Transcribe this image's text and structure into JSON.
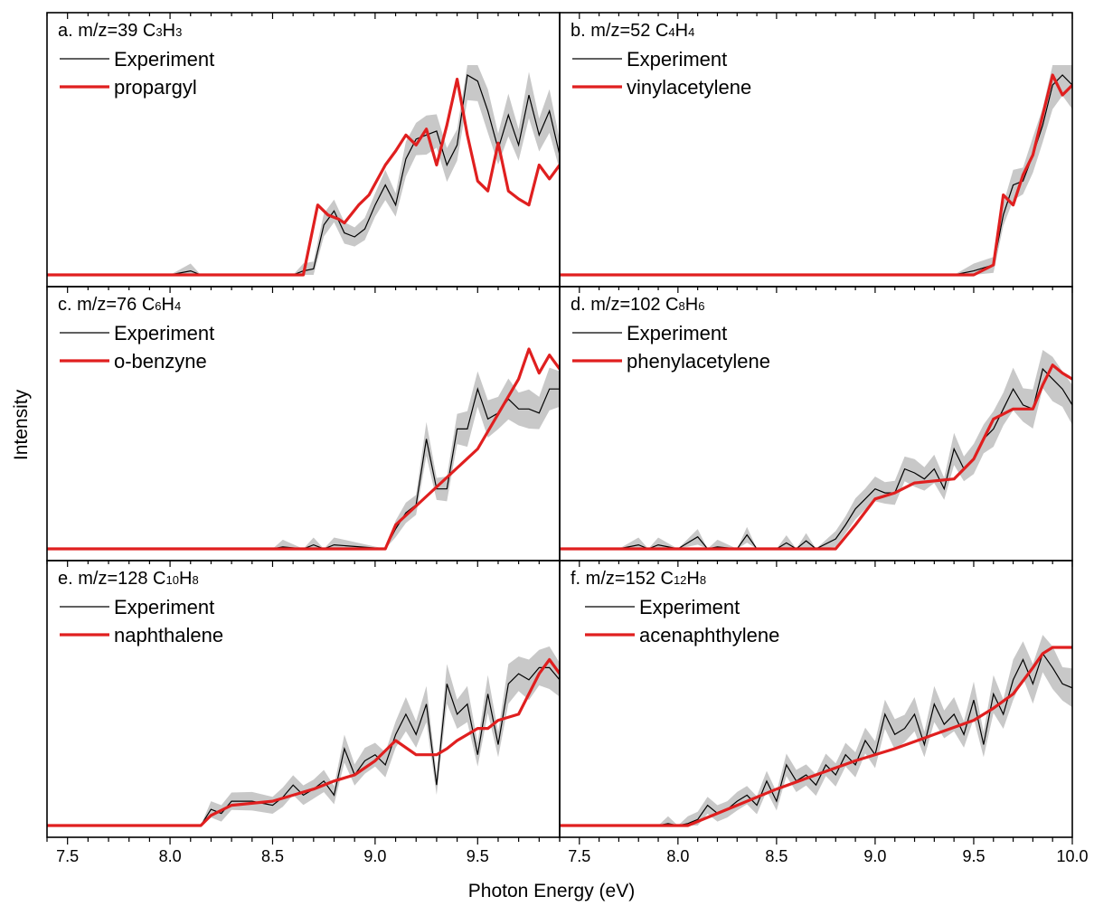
{
  "figure": {
    "xlabel": "Photon Energy (eV)",
    "ylabel": "Intensity",
    "colors": {
      "experiment": "#000000",
      "model": "#e01f1f",
      "band": "#c8c8c8"
    }
  },
  "chart_data": [
    {
      "type": "line",
      "title": "a. m/z=39 C3H3",
      "title_parts": {
        "prefix": "a. m/z=39 C",
        "n1": "3",
        "mid": "H",
        "n2": "3"
      },
      "xlim": [
        7.4,
        9.9
      ],
      "ylim": [
        0,
        1.05
      ],
      "xticks": [],
      "legend": [
        "Experiment",
        "propargyl"
      ],
      "series": [
        {
          "name": "Experiment",
          "x": [
            7.4,
            8.0,
            8.1,
            8.15,
            8.6,
            8.65,
            8.7,
            8.75,
            8.8,
            8.85,
            8.9,
            8.95,
            9.0,
            9.05,
            9.1,
            9.15,
            9.2,
            9.25,
            9.3,
            9.35,
            9.4,
            9.45,
            9.5,
            9.55,
            9.6,
            9.65,
            9.7,
            9.75,
            9.8,
            9.85,
            9.9
          ],
          "y": [
            0,
            0,
            0.02,
            0,
            0,
            0.02,
            0.03,
            0.25,
            0.32,
            0.21,
            0.19,
            0.23,
            0.35,
            0.45,
            0.35,
            0.58,
            0.68,
            0.7,
            0.72,
            0.55,
            0.65,
            1.0,
            0.97,
            0.82,
            0.63,
            0.8,
            0.65,
            0.9,
            0.7,
            0.82,
            0.6
          ]
        },
        {
          "name": "propargyl",
          "x": [
            7.4,
            8.0,
            8.65,
            8.72,
            8.77,
            8.82,
            8.85,
            8.92,
            8.97,
            9.05,
            9.1,
            9.15,
            9.2,
            9.25,
            9.3,
            9.35,
            9.4,
            9.45,
            9.5,
            9.55,
            9.6,
            9.65,
            9.7,
            9.75,
            9.8,
            9.85,
            9.9
          ],
          "y": [
            0,
            0,
            0,
            0.35,
            0.3,
            0.28,
            0.26,
            0.35,
            0.4,
            0.55,
            0.62,
            0.7,
            0.65,
            0.73,
            0.55,
            0.75,
            0.98,
            0.7,
            0.47,
            0.42,
            0.66,
            0.42,
            0.38,
            0.35,
            0.55,
            0.48,
            0.55
          ]
        }
      ]
    },
    {
      "type": "line",
      "title": "b. m/z=52 C4H4",
      "title_parts": {
        "prefix": "b. m/z=52 C",
        "n1": "4",
        "mid": "H",
        "n2": "4"
      },
      "xlim": [
        7.4,
        10.0
      ],
      "ylim": [
        0,
        1.05
      ],
      "xticks": [],
      "legend": [
        "Experiment",
        "vinylacetylene"
      ],
      "series": [
        {
          "name": "Experiment",
          "x": [
            7.4,
            9.4,
            9.5,
            9.6,
            9.65,
            9.7,
            9.75,
            9.8,
            9.85,
            9.9,
            9.95,
            10.0
          ],
          "y": [
            0,
            0,
            0.02,
            0.05,
            0.3,
            0.45,
            0.47,
            0.6,
            0.75,
            0.95,
            1.0,
            0.95
          ]
        },
        {
          "name": "vinylacetylene",
          "x": [
            7.4,
            9.5,
            9.6,
            9.65,
            9.7,
            9.75,
            9.8,
            9.85,
            9.9,
            9.95,
            10.0
          ],
          "y": [
            0,
            0,
            0.05,
            0.4,
            0.35,
            0.5,
            0.6,
            0.8,
            1.0,
            0.9,
            0.95
          ]
        }
      ]
    },
    {
      "type": "line",
      "title": "c. m/z=76 C6H4",
      "title_parts": {
        "prefix": "c. m/z=76 C",
        "n1": "6",
        "mid": "H",
        "n2": "4"
      },
      "xlim": [
        7.4,
        9.9
      ],
      "ylim": [
        0,
        1.05
      ],
      "xticks": [],
      "legend": [
        "Experiment",
        "o-benzyne"
      ],
      "series": [
        {
          "name": "Experiment",
          "x": [
            7.4,
            8.5,
            8.55,
            8.65,
            8.7,
            8.75,
            8.8,
            9.05,
            9.1,
            9.15,
            9.2,
            9.25,
            9.3,
            9.35,
            9.4,
            9.45,
            9.5,
            9.55,
            9.6,
            9.65,
            9.7,
            9.75,
            9.8,
            9.85,
            9.9
          ],
          "y": [
            0,
            0,
            0.01,
            0,
            0.02,
            0,
            0.02,
            0,
            0.1,
            0.18,
            0.22,
            0.55,
            0.3,
            0.3,
            0.6,
            0.6,
            0.8,
            0.65,
            0.68,
            0.75,
            0.7,
            0.7,
            0.68,
            0.8,
            0.8
          ]
        },
        {
          "name": "o-benzyne",
          "x": [
            7.4,
            9.05,
            9.1,
            9.5,
            9.7,
            9.75,
            9.8,
            9.85,
            9.9
          ],
          "y": [
            0,
            0,
            0.12,
            0.5,
            0.85,
            1.0,
            0.88,
            0.97,
            0.9
          ]
        }
      ]
    },
    {
      "type": "line",
      "title": "d. m/z=102 C8H6",
      "title_parts": {
        "prefix": "d. m/z=102 C",
        "n1": "8",
        "mid": "H",
        "n2": "6"
      },
      "xlim": [
        7.4,
        10.0
      ],
      "ylim": [
        0,
        1.05
      ],
      "xticks": [],
      "legend": [
        "Experiment",
        "phenylacetylene"
      ],
      "series": [
        {
          "name": "Experiment",
          "x": [
            7.4,
            7.7,
            7.8,
            7.85,
            7.9,
            8.0,
            8.1,
            8.15,
            8.2,
            8.3,
            8.35,
            8.4,
            8.5,
            8.55,
            8.6,
            8.65,
            8.7,
            8.8,
            8.85,
            8.9,
            8.95,
            9.0,
            9.05,
            9.1,
            9.15,
            9.2,
            9.25,
            9.3,
            9.35,
            9.4,
            9.45,
            9.5,
            9.55,
            9.6,
            9.65,
            9.7,
            9.75,
            9.8,
            9.85,
            9.9,
            9.95,
            10.0
          ],
          "y": [
            0,
            0,
            0.02,
            0,
            0.02,
            0,
            0.06,
            0,
            0.01,
            0,
            0.07,
            0,
            0,
            0.03,
            0,
            0.04,
            0,
            0.05,
            0.12,
            0.2,
            0.25,
            0.3,
            0.28,
            0.28,
            0.4,
            0.38,
            0.35,
            0.4,
            0.3,
            0.5,
            0.4,
            0.45,
            0.55,
            0.6,
            0.7,
            0.8,
            0.72,
            0.7,
            0.9,
            0.85,
            0.8,
            0.72
          ]
        },
        {
          "name": "phenylacetylene",
          "x": [
            7.4,
            8.8,
            8.9,
            9.0,
            9.1,
            9.2,
            9.4,
            9.5,
            9.55,
            9.6,
            9.7,
            9.8,
            9.85,
            9.9,
            9.95,
            10.0
          ],
          "y": [
            0,
            0,
            0.12,
            0.25,
            0.28,
            0.33,
            0.35,
            0.45,
            0.55,
            0.65,
            0.7,
            0.7,
            0.82,
            0.92,
            0.88,
            0.85
          ]
        }
      ]
    },
    {
      "type": "line",
      "title": "e. m/z=128 C10H8",
      "title_parts": {
        "prefix": "e. m/z=128 C",
        "n1": "10",
        "mid": "H",
        "n2": "8"
      },
      "xlim": [
        7.4,
        9.9
      ],
      "ylim": [
        0,
        1.05
      ],
      "xticks": [
        7.5,
        8.0,
        8.5,
        9.0,
        9.5
      ],
      "xtick_labels": [
        "7.5",
        "8.0",
        "8.5",
        "9.0",
        "9.5"
      ],
      "legend": [
        "Experiment",
        "naphthalene"
      ],
      "series": [
        {
          "name": "Experiment",
          "x": [
            7.4,
            8.15,
            8.2,
            8.25,
            8.3,
            8.4,
            8.5,
            8.55,
            8.6,
            8.65,
            8.7,
            8.75,
            8.8,
            8.85,
            8.9,
            8.95,
            9.0,
            9.05,
            9.1,
            9.15,
            9.2,
            9.25,
            9.3,
            9.35,
            9.4,
            9.45,
            9.5,
            9.55,
            9.6,
            9.65,
            9.7,
            9.75,
            9.8,
            9.85,
            9.9
          ],
          "y": [
            0,
            0,
            0.08,
            0.06,
            0.12,
            0.12,
            0.1,
            0.14,
            0.2,
            0.15,
            0.18,
            0.22,
            0.15,
            0.38,
            0.25,
            0.32,
            0.35,
            0.3,
            0.45,
            0.55,
            0.45,
            0.6,
            0.2,
            0.7,
            0.55,
            0.6,
            0.35,
            0.65,
            0.4,
            0.7,
            0.75,
            0.72,
            0.78,
            0.78,
            0.72
          ]
        },
        {
          "name": "naphthalene",
          "x": [
            7.4,
            8.15,
            8.2,
            8.3,
            8.5,
            8.6,
            8.7,
            8.8,
            8.9,
            9.0,
            9.05,
            9.1,
            9.2,
            9.3,
            9.35,
            9.4,
            9.5,
            9.55,
            9.6,
            9.7,
            9.8,
            9.85,
            9.9
          ],
          "y": [
            0,
            0,
            0.05,
            0.1,
            0.12,
            0.15,
            0.18,
            0.22,
            0.25,
            0.32,
            0.37,
            0.42,
            0.35,
            0.35,
            0.38,
            0.42,
            0.48,
            0.48,
            0.52,
            0.55,
            0.75,
            0.82,
            0.75
          ]
        }
      ]
    },
    {
      "type": "line",
      "title": "f. m/z=152 C12H8",
      "title_parts": {
        "prefix": "f. m/z=152 C",
        "n1": "12",
        "mid": "H",
        "n2": "8"
      },
      "xlim": [
        7.4,
        10.0
      ],
      "ylim": [
        0,
        1.05
      ],
      "xticks": [
        7.5,
        8.0,
        8.5,
        9.0,
        9.5,
        10.0
      ],
      "xtick_labels": [
        "7.5",
        "8.0",
        "8.5",
        "9.0",
        "9.5",
        "10.0"
      ],
      "legend": [
        "Experiment",
        "acenaphthylene"
      ],
      "series": [
        {
          "name": "Experiment",
          "x": [
            7.4,
            7.9,
            7.95,
            8.0,
            8.05,
            8.1,
            8.15,
            8.2,
            8.25,
            8.3,
            8.35,
            8.4,
            8.45,
            8.5,
            8.55,
            8.6,
            8.65,
            8.7,
            8.75,
            8.8,
            8.85,
            8.9,
            8.95,
            9.0,
            9.05,
            9.1,
            9.15,
            9.2,
            9.25,
            9.3,
            9.35,
            9.4,
            9.45,
            9.5,
            9.55,
            9.6,
            9.65,
            9.7,
            9.75,
            9.8,
            9.85,
            9.9,
            9.95,
            10.0
          ],
          "y": [
            0,
            0,
            0.01,
            0,
            0.01,
            0.03,
            0.1,
            0.06,
            0.08,
            0.12,
            0.15,
            0.1,
            0.22,
            0.12,
            0.3,
            0.22,
            0.25,
            0.2,
            0.3,
            0.25,
            0.35,
            0.3,
            0.42,
            0.35,
            0.55,
            0.45,
            0.48,
            0.55,
            0.4,
            0.6,
            0.5,
            0.55,
            0.45,
            0.62,
            0.4,
            0.65,
            0.55,
            0.72,
            0.82,
            0.7,
            0.85,
            0.78,
            0.7,
            0.68
          ]
        },
        {
          "name": "acenaphthylene",
          "x": [
            7.4,
            8.05,
            8.1,
            8.3,
            8.5,
            8.7,
            8.9,
            9.1,
            9.3,
            9.5,
            9.6,
            9.7,
            9.8,
            9.85,
            9.9,
            10.0
          ],
          "y": [
            0,
            0,
            0.02,
            0.1,
            0.18,
            0.25,
            0.32,
            0.38,
            0.45,
            0.52,
            0.58,
            0.65,
            0.78,
            0.85,
            0.88,
            0.88
          ]
        }
      ]
    }
  ]
}
